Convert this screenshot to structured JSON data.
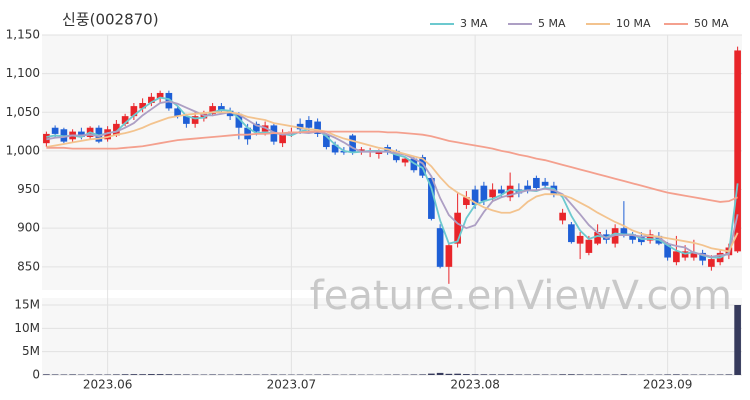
{
  "chart_data": {
    "type": "candlestick",
    "title": "신풍(002870)",
    "watermark": "feature.enViewV.com",
    "categories": [
      null,
      null,
      null,
      null,
      null,
      null,
      null,
      "2023.06",
      null,
      null,
      null,
      null,
      null,
      null,
      null,
      null,
      null,
      null,
      null,
      null,
      null,
      null,
      null,
      null,
      null,
      null,
      null,
      null,
      "2023.07",
      null,
      null,
      null,
      null,
      null,
      null,
      null,
      null,
      null,
      null,
      null,
      null,
      null,
      null,
      null,
      null,
      null,
      null,
      null,
      null,
      "2023.08",
      null,
      null,
      null,
      null,
      null,
      null,
      null,
      null,
      null,
      null,
      null,
      null,
      null,
      null,
      null,
      null,
      null,
      null,
      null,
      null,
      null,
      "2023.09",
      null,
      null,
      null,
      null,
      null,
      null,
      null,
      null
    ],
    "open": [
      1010,
      1030,
      1028,
      1015,
      1025,
      1018,
      1030,
      1015,
      1020,
      1035,
      1045,
      1055,
      1062,
      1068,
      1075,
      1055,
      1045,
      1035,
      1042,
      1048,
      1058,
      1052,
      1048,
      1030,
      1035,
      1025,
      1033,
      1010,
      1022,
      1035,
      1040,
      1038,
      1020,
      1008,
      1000,
      1020,
      998,
      998,
      996,
      1005,
      1000,
      985,
      990,
      992,
      965,
      900,
      850,
      880,
      930,
      950,
      955,
      940,
      950,
      940,
      950,
      955,
      965,
      960,
      955,
      910,
      905,
      880,
      868,
      880,
      892,
      880,
      900,
      892,
      890,
      884,
      890,
      880,
      856,
      862,
      862,
      868,
      850,
      856,
      865,
      870
    ],
    "high": [
      1025,
      1033,
      1030,
      1028,
      1030,
      1032,
      1033,
      1032,
      1040,
      1048,
      1062,
      1068,
      1075,
      1078,
      1078,
      1058,
      1048,
      1050,
      1052,
      1062,
      1062,
      1056,
      1050,
      1035,
      1038,
      1038,
      1036,
      1028,
      1030,
      1042,
      1045,
      1042,
      1022,
      1012,
      1005,
      1022,
      1005,
      1004,
      1002,
      1008,
      1002,
      992,
      992,
      995,
      968,
      905,
      880,
      945,
      948,
      955,
      960,
      958,
      955,
      972,
      958,
      962,
      968,
      965,
      960,
      925,
      908,
      895,
      890,
      905,
      898,
      905,
      935,
      895,
      895,
      898,
      895,
      882,
      890,
      878,
      885,
      872,
      865,
      872,
      880,
      1135
    ],
    "low": [
      1005,
      1018,
      1010,
      1012,
      1015,
      1015,
      1010,
      1012,
      1018,
      1032,
      1040,
      1050,
      1058,
      1062,
      1052,
      1042,
      1030,
      1030,
      1038,
      1045,
      1048,
      1040,
      1015,
      1008,
      1020,
      1020,
      1008,
      1005,
      1018,
      1022,
      1025,
      1018,
      1002,
      995,
      995,
      995,
      995,
      992,
      990,
      995,
      985,
      980,
      972,
      965,
      910,
      848,
      828,
      875,
      925,
      925,
      930,
      935,
      940,
      935,
      940,
      945,
      950,
      950,
      940,
      905,
      880,
      860,
      865,
      878,
      880,
      875,
      888,
      880,
      878,
      880,
      878,
      858,
      852,
      858,
      858,
      852,
      845,
      852,
      860,
      868
    ],
    "close": [
      1022,
      1022,
      1012,
      1025,
      1018,
      1030,
      1012,
      1028,
      1035,
      1045,
      1058,
      1062,
      1070,
      1075,
      1055,
      1045,
      1035,
      1045,
      1048,
      1058,
      1052,
      1045,
      1030,
      1015,
      1025,
      1033,
      1012,
      1022,
      1025,
      1028,
      1030,
      1022,
      1005,
      998,
      998,
      998,
      1002,
      1000,
      998,
      998,
      988,
      990,
      975,
      968,
      912,
      850,
      878,
      920,
      940,
      930,
      935,
      950,
      945,
      955,
      945,
      948,
      952,
      955,
      945,
      920,
      882,
      890,
      885,
      895,
      885,
      900,
      892,
      885,
      882,
      892,
      880,
      862,
      870,
      870,
      868,
      858,
      860,
      868,
      875,
      1130
    ],
    "volume": [
      150000,
      120000,
      110000,
      130000,
      100000,
      120000,
      110000,
      100000,
      130000,
      160000,
      180000,
      170000,
      200000,
      190000,
      160000,
      130000,
      120000,
      110000,
      100000,
      120000,
      110000,
      100000,
      130000,
      120000,
      100000,
      110000,
      120000,
      100000,
      90000,
      100000,
      90000,
      100000,
      110000,
      90000,
      80000,
      100000,
      80000,
      80000,
      70000,
      90000,
      100000,
      90000,
      110000,
      130000,
      300000,
      450000,
      250000,
      280000,
      200000,
      160000,
      150000,
      140000,
      130000,
      150000,
      120000,
      110000,
      120000,
      110000,
      100000,
      150000,
      160000,
      130000,
      110000,
      120000,
      100000,
      110000,
      150000,
      100000,
      90000,
      100000,
      90000,
      120000,
      140000,
      110000,
      100000,
      110000,
      100000,
      110000,
      130000,
      15000000
    ],
    "up_color": "#e8252a",
    "down_color": "#1e5fd6",
    "volume_color": "#363a5c",
    "series": [
      {
        "name": "3 MA",
        "color": "#6cc9cf",
        "values": [
          1018,
          1020,
          1019,
          1020,
          1018,
          1024,
          1020,
          1023,
          1025,
          1036,
          1046,
          1055,
          1063,
          1069,
          1067,
          1058,
          1045,
          1042,
          1043,
          1050,
          1053,
          1052,
          1042,
          1030,
          1023,
          1024,
          1023,
          1022,
          1020,
          1025,
          1028,
          1027,
          1019,
          1008,
          1000,
          998,
          999,
          1000,
          1000,
          999,
          995,
          992,
          984,
          978,
          952,
          910,
          880,
          883,
          913,
          930,
          935,
          938,
          943,
          950,
          948,
          949,
          948,
          952,
          951,
          940,
          916,
          897,
          886,
          890,
          888,
          893,
          892,
          892,
          886,
          886,
          885,
          878,
          871,
          867,
          869,
          865,
          862,
          862,
          868,
          958
        ]
      },
      {
        "name": "5 MA",
        "color": "#ad9fc4",
        "values": [
          1015,
          1017,
          1018,
          1020,
          1020,
          1021,
          1019,
          1023,
          1025,
          1030,
          1036,
          1046,
          1054,
          1062,
          1064,
          1061,
          1056,
          1051,
          1046,
          1046,
          1048,
          1050,
          1047,
          1040,
          1033,
          1030,
          1024,
          1021,
          1023,
          1024,
          1023,
          1025,
          1022,
          1017,
          1011,
          1004,
          999,
          999,
          999,
          999,
          997,
          995,
          990,
          984,
          967,
          939,
          917,
          906,
          900,
          904,
          921,
          935,
          940,
          943,
          946,
          949,
          949,
          951,
          949,
          944,
          931,
          918,
          904,
          894,
          887,
          891,
          891,
          891,
          889,
          890,
          888,
          880,
          877,
          875,
          868,
          866,
          863,
          865,
          866,
          918
        ]
      },
      {
        "name": "10 MA",
        "color": "#f3c38e",
        "values": [
          1005,
          1007,
          1009,
          1011,
          1013,
          1015,
          1016,
          1018,
          1021,
          1023,
          1026,
          1030,
          1035,
          1039,
          1043,
          1045,
          1047,
          1048,
          1049,
          1050,
          1050,
          1050,
          1048,
          1044,
          1042,
          1040,
          1036,
          1034,
          1032,
          1030,
          1028,
          1027,
          1025,
          1020,
          1016,
          1013,
          1010,
          1007,
          1004,
          1002,
          999,
          996,
          993,
          990,
          980,
          966,
          954,
          946,
          940,
          933,
          927,
          923,
          920,
          920,
          924,
          934,
          941,
          944,
          944,
          943,
          939,
          933,
          927,
          920,
          914,
          908,
          903,
          897,
          893,
          890,
          889,
          887,
          885,
          883,
          881,
          878,
          874,
          872,
          870,
          894
        ]
      },
      {
        "name": "50 MA",
        "color": "#f4a08e",
        "values": [
          1004,
          1004,
          1004,
          1003,
          1003,
          1003,
          1003,
          1003,
          1003,
          1004,
          1005,
          1006,
          1008,
          1010,
          1012,
          1014,
          1015,
          1016,
          1017,
          1018,
          1019,
          1020,
          1021,
          1021,
          1022,
          1022,
          1023,
          1023,
          1024,
          1024,
          1025,
          1025,
          1025,
          1025,
          1025,
          1025,
          1025,
          1025,
          1025,
          1024,
          1024,
          1023,
          1022,
          1021,
          1019,
          1016,
          1013,
          1011,
          1009,
          1007,
          1005,
          1003,
          1000,
          998,
          995,
          993,
          990,
          988,
          985,
          982,
          979,
          976,
          973,
          970,
          967,
          964,
          961,
          958,
          955,
          952,
          949,
          946,
          944,
          942,
          940,
          938,
          936,
          934,
          935,
          940
        ]
      }
    ],
    "ylim": [
      820,
      1150
    ],
    "yticks": [
      850,
      900,
      950,
      {
        "value": 1000,
        "label": "1,000"
      },
      {
        "value": 1050,
        "label": "1,050"
      },
      {
        "value": 1100,
        "label": "1,100"
      },
      {
        "value": 1150,
        "label": "1,150"
      }
    ],
    "volume_ylim": [
      0,
      16500000
    ],
    "volume_yticks": [
      0,
      {
        "value": 5000000,
        "label": "5M"
      },
      {
        "value": 10000000,
        "label": "10M"
      },
      {
        "value": 15000000,
        "label": "15M"
      }
    ],
    "grid": true
  }
}
